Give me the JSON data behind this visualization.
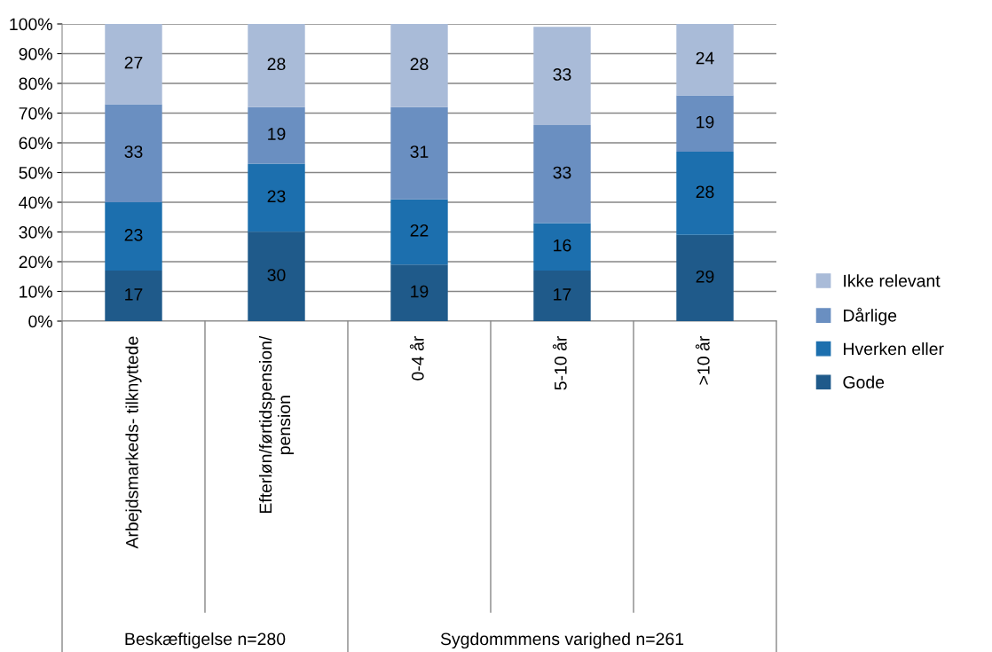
{
  "chart_data": {
    "type": "bar",
    "stacked": true,
    "categories": [
      "Arbejdsmarkeds- tilknyttede",
      "Efterløn/førtidspension/\npension",
      "0-4 år",
      "5-10 år",
      ">10 år"
    ],
    "series": [
      {
        "name": "Gode",
        "color": "#1f5a8a",
        "values": [
          17,
          30,
          19,
          17,
          29
        ]
      },
      {
        "name": "Hverken eller",
        "color": "#1c6fae",
        "values": [
          23,
          23,
          22,
          16,
          28
        ]
      },
      {
        "name": "Dårlige",
        "color": "#6a8fc1",
        "values": [
          33,
          19,
          31,
          33,
          19
        ]
      },
      {
        "name": "Ikke relevant",
        "color": "#a9bbd8",
        "values": [
          27,
          28,
          28,
          33,
          24
        ]
      }
    ],
    "ylim": [
      0,
      100
    ],
    "yticks": [
      {
        "value": 0,
        "label": "0%"
      },
      {
        "value": 10,
        "label": "10%"
      },
      {
        "value": 20,
        "label": "20%"
      },
      {
        "value": 30,
        "label": "30%"
      },
      {
        "value": 40,
        "label": "40%"
      },
      {
        "value": 50,
        "label": "50%"
      },
      {
        "value": 60,
        "label": "60%"
      },
      {
        "value": 70,
        "label": "70%"
      },
      {
        "value": 80,
        "label": "80%"
      },
      {
        "value": 90,
        "label": "90%"
      },
      {
        "value": 100,
        "label": "100%"
      }
    ],
    "grid": "y",
    "legend": "right",
    "data_labels": true,
    "annotations": [
      "Beskæftigelse n=280",
      "Sygdommmens varighed n=261"
    ]
  }
}
